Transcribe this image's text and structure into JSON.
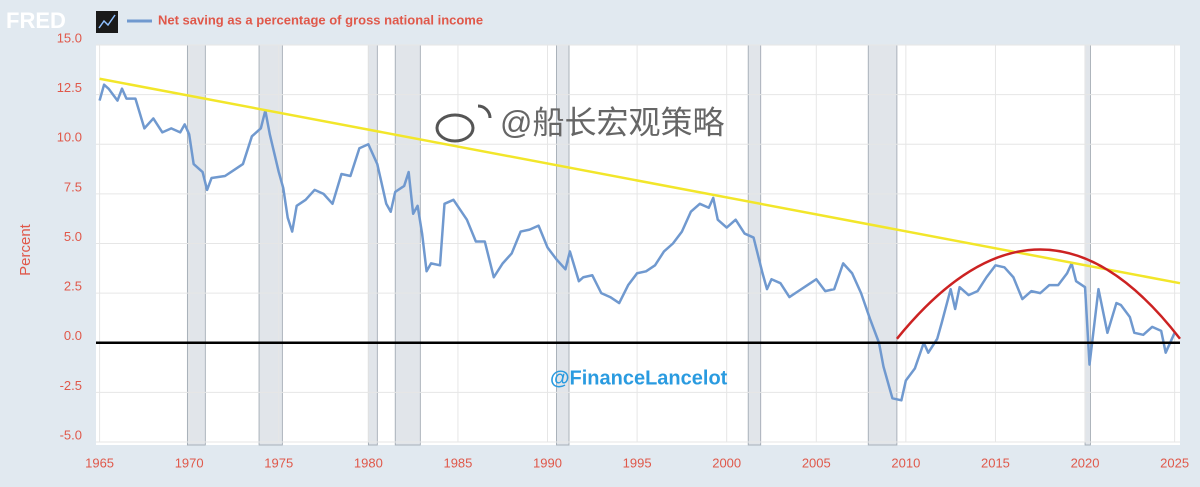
{
  "chart_data": {
    "type": "line",
    "logo": "FRED",
    "series": [
      {
        "name": "Net saving as a percentage of gross national income",
        "color": "#7099cf",
        "x": [
          1965.0,
          1965.25,
          1965.5,
          1966.0,
          1966.25,
          1966.5,
          1967.0,
          1967.5,
          1968.0,
          1968.5,
          1969.0,
          1969.5,
          1969.75,
          1970.0,
          1970.25,
          1970.75,
          1971.0,
          1971.25,
          1972.0,
          1972.5,
          1973.0,
          1973.5,
          1974.0,
          1974.25,
          1974.5,
          1975.0,
          1975.25,
          1975.5,
          1975.75,
          1976.0,
          1976.5,
          1977.0,
          1977.5,
          1978.0,
          1978.5,
          1979.0,
          1979.5,
          1980.0,
          1980.5,
          1981.0,
          1981.25,
          1981.5,
          1982.0,
          1982.25,
          1982.5,
          1982.75,
          1983.0,
          1983.25,
          1983.5,
          1984.0,
          1984.25,
          1984.75,
          1985.5,
          1986.0,
          1986.5,
          1987.0,
          1987.5,
          1988.0,
          1988.5,
          1989.0,
          1989.5,
          1990.0,
          1990.5,
          1991.0,
          1991.25,
          1991.75,
          1992.0,
          1992.5,
          1993.0,
          1993.5,
          1994.0,
          1994.5,
          1995.0,
          1995.5,
          1996.0,
          1996.5,
          1997.0,
          1997.5,
          1998.0,
          1998.5,
          1999.0,
          1999.25,
          1999.5,
          2000.0,
          2000.5,
          2001.0,
          2001.5,
          2002.0,
          2002.25,
          2002.5,
          2003.0,
          2003.5,
          2004.0,
          2004.5,
          2005.0,
          2005.5,
          2006.0,
          2006.5,
          2007.0,
          2007.5,
          2008.0,
          2008.5,
          2008.75,
          2009.25,
          2009.75,
          2010.0,
          2010.5,
          2011.0,
          2011.25,
          2011.75,
          2012.0,
          2012.5,
          2012.75,
          2013.0,
          2013.5,
          2014.0,
          2014.5,
          2015.0,
          2015.5,
          2016.0,
          2016.5,
          2017.0,
          2017.5,
          2018.0,
          2018.5,
          2019.0,
          2019.25,
          2019.5,
          2020.0,
          2020.25,
          2020.75,
          2021.25,
          2021.75,
          2022.0,
          2022.5,
          2022.75,
          2023.25,
          2023.75,
          2024.25,
          2024.5,
          2025.0
        ],
        "values": [
          12.2,
          13.0,
          12.8,
          12.2,
          12.8,
          12.3,
          12.3,
          10.8,
          11.3,
          10.6,
          10.8,
          10.6,
          11.0,
          10.5,
          9.0,
          8.6,
          7.7,
          8.3,
          8.4,
          8.7,
          9.0,
          10.4,
          10.8,
          11.7,
          10.5,
          8.6,
          7.8,
          6.3,
          5.6,
          6.9,
          7.2,
          7.7,
          7.5,
          7.0,
          8.5,
          8.4,
          9.8,
          10.0,
          9.0,
          7.0,
          6.6,
          7.6,
          7.9,
          8.6,
          6.5,
          6.9,
          5.5,
          3.6,
          4.0,
          3.9,
          7.0,
          7.2,
          6.2,
          5.1,
          5.1,
          3.3,
          4.0,
          4.5,
          5.6,
          5.7,
          5.9,
          4.8,
          4.2,
          3.7,
          4.6,
          3.1,
          3.3,
          3.4,
          2.5,
          2.3,
          2.0,
          2.9,
          3.5,
          3.6,
          3.9,
          4.6,
          5.0,
          5.6,
          6.6,
          7.0,
          6.8,
          7.3,
          6.2,
          5.8,
          6.2,
          5.5,
          5.3,
          3.5,
          2.7,
          3.2,
          3.0,
          2.3,
          2.6,
          2.9,
          3.2,
          2.6,
          2.7,
          4.0,
          3.5,
          2.5,
          1.2,
          0.0,
          -1.2,
          -2.8,
          -2.9,
          -1.9,
          -1.3,
          0.0,
          -0.5,
          0.2,
          1.0,
          2.7,
          1.7,
          2.8,
          2.4,
          2.6,
          3.3,
          3.9,
          3.8,
          3.3,
          2.2,
          2.6,
          2.5,
          2.9,
          2.9,
          3.5,
          4.0,
          3.1,
          2.8,
          -1.1,
          2.7,
          0.5,
          2.0,
          1.9,
          1.3,
          0.5,
          0.4,
          0.8,
          0.6,
          -0.5,
          0.5
        ]
      }
    ],
    "recessions": [
      [
        1969.9,
        1970.9
      ],
      [
        1973.9,
        1975.2
      ],
      [
        1980.0,
        1980.5
      ],
      [
        1981.5,
        1982.9
      ],
      [
        1990.5,
        1991.2
      ],
      [
        2001.2,
        2001.9
      ],
      [
        2007.9,
        2009.5
      ],
      [
        2020.0,
        2020.3
      ]
    ],
    "recession_color": "#e1e5ea",
    "ylabel": "Percent",
    "xlim": [
      1964.8,
      2025.3
    ],
    "ylim": [
      -5,
      15
    ],
    "xticks": [
      1965,
      1970,
      1975,
      1980,
      1985,
      1990,
      1995,
      2000,
      2005,
      2010,
      2015,
      2020,
      2025
    ],
    "yticks": [
      {
        "value": 15,
        "label": "15.0"
      },
      12.5,
      {
        "value": 10,
        "label": "10.0"
      },
      7.5,
      {
        "value": 5,
        "label": "5.0"
      },
      2.5,
      {
        "value": 0,
        "label": "0.0"
      },
      -2.5,
      {
        "value": -5,
        "label": "-5.0"
      }
    ],
    "grid": true,
    "trend_line": {
      "color": "#f2e62a",
      "points": [
        [
          1965,
          13.3
        ],
        [
          2025.3,
          3.0
        ]
      ]
    },
    "arc": {
      "color": "#cc2222",
      "points": [
        [
          2009.5,
          0.2
        ],
        [
          2017.5,
          4.7
        ],
        [
          2025.3,
          0.2
        ]
      ]
    },
    "reference_line": {
      "y": 0,
      "color": "#000000"
    },
    "watermarks": [
      "@船长宏观策略",
      "@FinanceLancelot"
    ]
  }
}
